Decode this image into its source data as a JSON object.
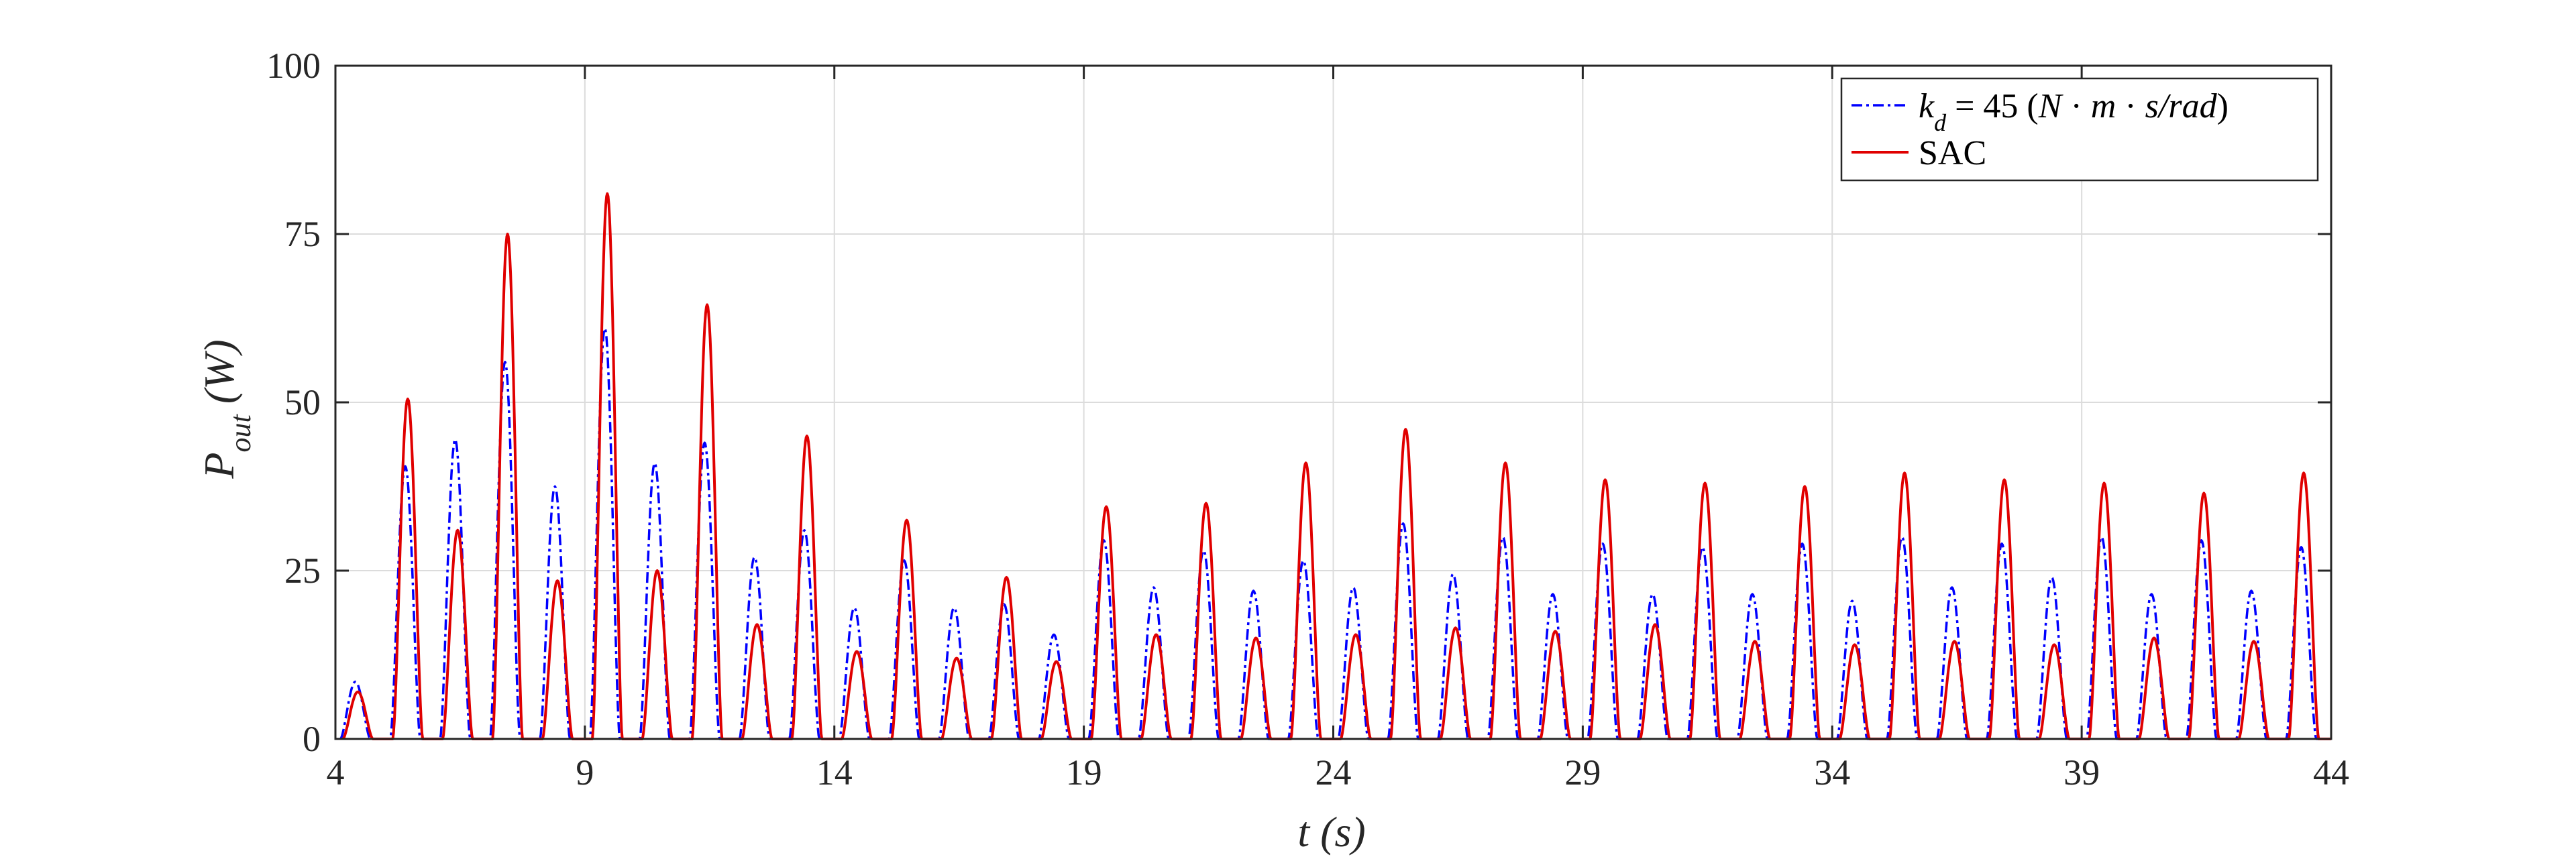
{
  "chart_data": {
    "type": "line",
    "xlabel": "t (s)",
    "ylabel": "P_out (W)",
    "xlim": [
      4,
      44
    ],
    "ylim": [
      0,
      100
    ],
    "xticks": [
      4,
      9,
      14,
      19,
      24,
      29,
      34,
      39,
      44
    ],
    "yticks": [
      0,
      25,
      50,
      75,
      100
    ],
    "grid": true,
    "legend_position": "top-right",
    "x_tick_labels": [
      "4",
      "9",
      "14",
      "19",
      "24",
      "29",
      "34",
      "39",
      "44"
    ],
    "y_tick_labels": [
      "0",
      "25",
      "50",
      "75",
      "100"
    ],
    "series": [
      {
        "name": "k_d = 45 (N·m·s/rad)",
        "color": "#0000ff",
        "style": "dashdot",
        "peaks": [
          [
            4.4,
            8.5
          ],
          [
            5.4,
            40.5
          ],
          [
            6.4,
            44.5
          ],
          [
            7.4,
            56
          ],
          [
            8.4,
            37.5
          ],
          [
            9.4,
            61
          ],
          [
            10.4,
            41
          ],
          [
            11.4,
            44
          ],
          [
            12.4,
            27
          ],
          [
            13.4,
            31
          ],
          [
            14.4,
            19.5
          ],
          [
            15.4,
            26.5
          ],
          [
            16.4,
            19.5
          ],
          [
            17.4,
            20
          ],
          [
            18.4,
            15.5
          ],
          [
            19.4,
            29.5
          ],
          [
            20.4,
            22.5
          ],
          [
            21.4,
            28
          ],
          [
            22.4,
            22
          ],
          [
            23.4,
            26.5
          ],
          [
            24.4,
            22.5
          ],
          [
            25.4,
            32
          ],
          [
            26.4,
            24.5
          ],
          [
            27.4,
            30
          ],
          [
            28.4,
            21.5
          ],
          [
            29.4,
            29
          ],
          [
            30.4,
            21.5
          ],
          [
            31.4,
            28.5
          ],
          [
            32.4,
            21.5
          ],
          [
            33.4,
            29
          ],
          [
            34.4,
            20.5
          ],
          [
            35.4,
            30
          ],
          [
            36.4,
            22.5
          ],
          [
            37.4,
            29
          ],
          [
            38.4,
            24
          ],
          [
            39.4,
            30
          ],
          [
            40.4,
            21.5
          ],
          [
            41.4,
            29.5
          ],
          [
            42.4,
            22
          ],
          [
            43.4,
            28.5
          ]
        ]
      },
      {
        "name": "SAC",
        "color": "#e00000",
        "style": "solid",
        "peaks": [
          [
            4.45,
            7
          ],
          [
            5.45,
            50.5
          ],
          [
            6.45,
            31
          ],
          [
            7.45,
            75
          ],
          [
            8.45,
            23.5
          ],
          [
            9.45,
            81
          ],
          [
            10.45,
            25
          ],
          [
            11.45,
            64.5
          ],
          [
            12.45,
            17
          ],
          [
            13.45,
            45
          ],
          [
            14.45,
            13
          ],
          [
            15.45,
            32.5
          ],
          [
            16.45,
            12
          ],
          [
            17.45,
            24
          ],
          [
            18.45,
            11.5
          ],
          [
            19.45,
            34.5
          ],
          [
            20.45,
            15.5
          ],
          [
            21.45,
            35
          ],
          [
            22.45,
            15
          ],
          [
            23.45,
            41
          ],
          [
            24.45,
            15.5
          ],
          [
            25.45,
            46
          ],
          [
            26.45,
            16.5
          ],
          [
            27.45,
            41
          ],
          [
            28.45,
            16
          ],
          [
            29.45,
            38.5
          ],
          [
            30.45,
            17
          ],
          [
            31.45,
            38
          ],
          [
            32.45,
            14.5
          ],
          [
            33.45,
            37.5
          ],
          [
            34.45,
            14
          ],
          [
            35.45,
            39.5
          ],
          [
            36.45,
            14.5
          ],
          [
            37.45,
            38.5
          ],
          [
            38.45,
            14
          ],
          [
            39.45,
            38
          ],
          [
            40.45,
            15
          ],
          [
            41.45,
            36.5
          ],
          [
            42.45,
            14.5
          ],
          [
            43.45,
            39.5
          ]
        ]
      }
    ]
  }
}
